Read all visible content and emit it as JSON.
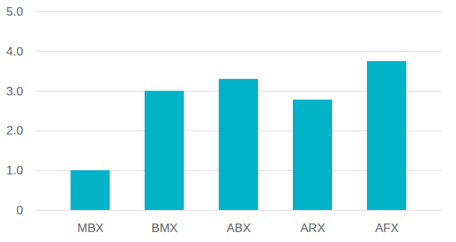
{
  "chart_data": {
    "type": "bar",
    "categories": [
      "MBX",
      "BMX",
      "ABX",
      "ARX",
      "AFX"
    ],
    "values": [
      1.0,
      3.0,
      3.3,
      2.78,
      3.75
    ],
    "color": "#00b3c9",
    "ylim": [
      0,
      5
    ],
    "yticks": [
      0,
      {
        "value": 1,
        "label": "1.0"
      },
      {
        "value": 2,
        "label": "2.0"
      },
      {
        "value": 3,
        "label": "3.0"
      },
      {
        "value": 4,
        "label": "4.0"
      },
      {
        "value": 5,
        "label": "5.0"
      }
    ],
    "grid": true
  }
}
